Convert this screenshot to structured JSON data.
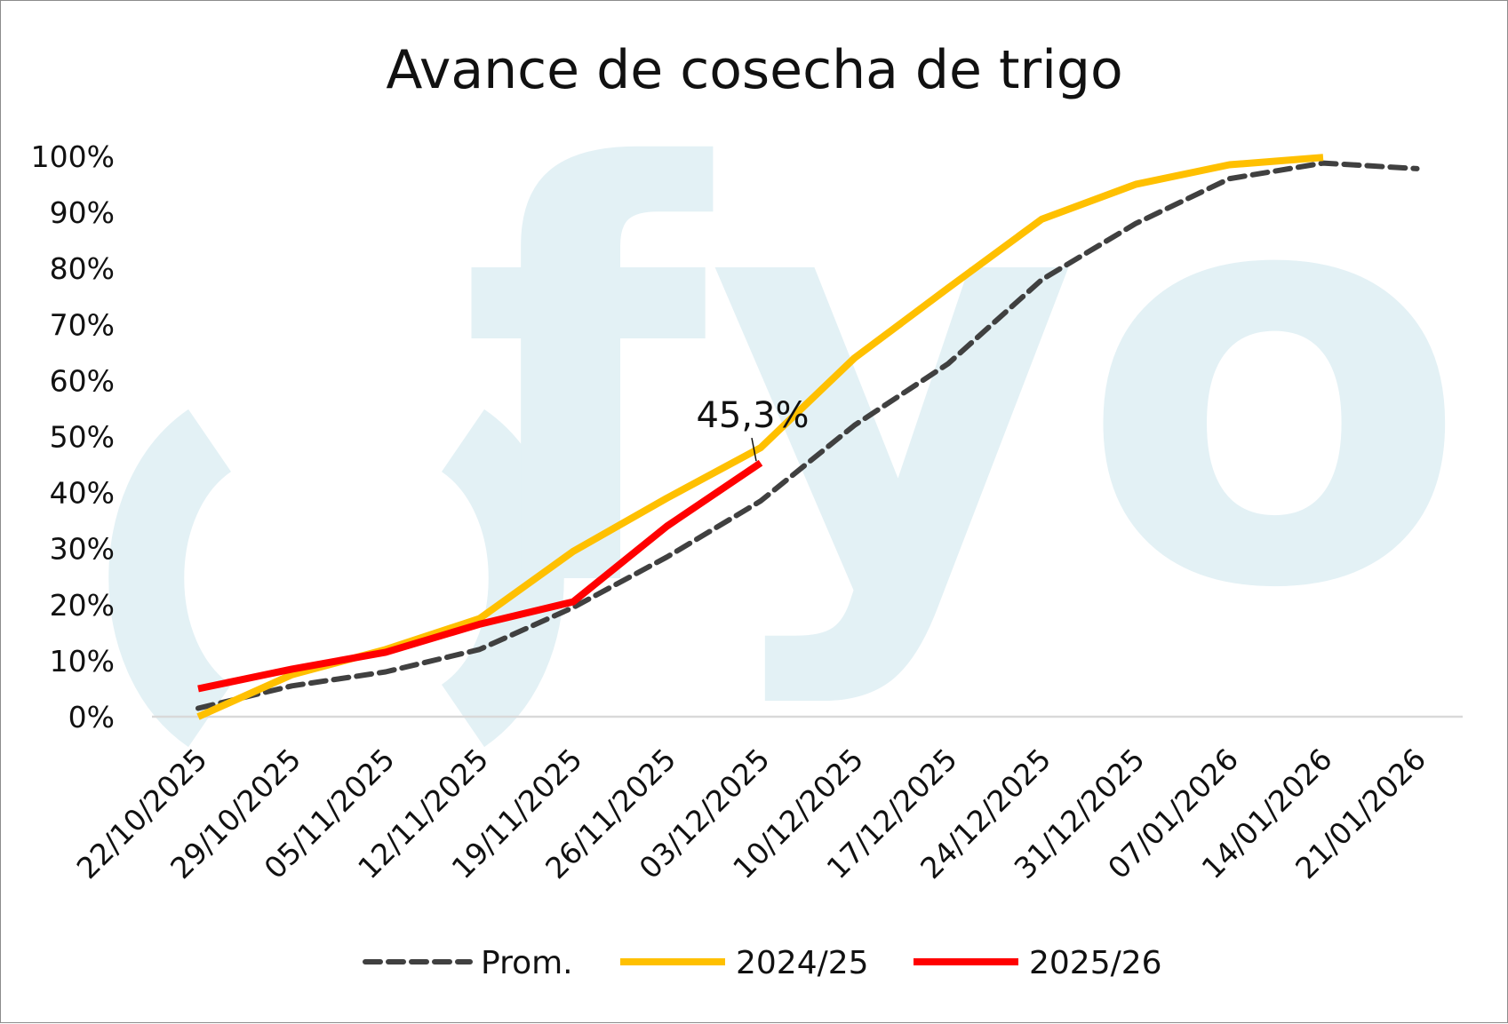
{
  "chart_data": {
    "type": "line",
    "title": "Avance de cosecha de trigo",
    "xlabel": "",
    "ylabel": "",
    "categories": [
      "22/10/2025",
      "29/10/2025",
      "05/11/2025",
      "12/11/2025",
      "19/11/2025",
      "26/11/2025",
      "03/12/2025",
      "10/12/2025",
      "17/12/2025",
      "24/12/2025",
      "31/12/2025",
      "07/01/2026",
      "14/01/2026",
      "21/01/2026"
    ],
    "y_ticks": [
      "0%",
      "10%",
      "20%",
      "30%",
      "40%",
      "50%",
      "60%",
      "70%",
      "80%",
      "90%",
      "100%"
    ],
    "ylim": [
      0,
      100
    ],
    "grid": false,
    "legend_position": "bottom",
    "series": [
      {
        "name": "Prom.",
        "color": "#404040",
        "style": "dashed",
        "values": [
          1.5,
          5.5,
          8,
          12,
          19.5,
          28.5,
          38.5,
          52,
          63,
          78,
          88,
          96,
          98.8,
          97.8
        ]
      },
      {
        "name": "2024/25",
        "color": "#ffc000",
        "style": "solid",
        "values": [
          0,
          7.5,
          12,
          17.5,
          29.5,
          39,
          48,
          64,
          76.5,
          88.8,
          95,
          98.5,
          99.8,
          null
        ]
      },
      {
        "name": "2025/26",
        "color": "#ff0000",
        "style": "solid",
        "values": [
          5,
          8.5,
          11.5,
          16.5,
          20.5,
          34,
          45.3,
          null,
          null,
          null,
          null,
          null,
          null,
          null
        ]
      }
    ],
    "annotations": [
      {
        "text": "45,3%",
        "series": "2025/26",
        "category": "03/12/2025",
        "value": 45.3
      }
    ],
    "watermark": "fyo"
  }
}
